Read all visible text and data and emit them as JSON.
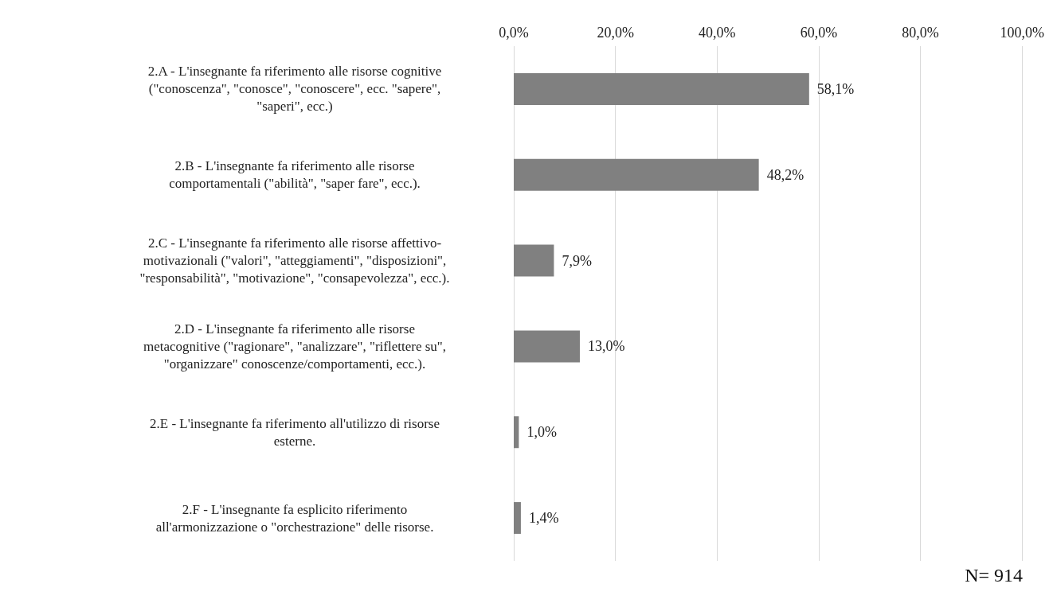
{
  "chart_data": {
    "type": "bar",
    "orientation": "horizontal",
    "categories": [
      "2.A - L'insegnante fa riferimento alle risorse cognitive\n(\"conoscenza\", \"conosce\", \"conoscere\", ecc. \"sapere\",\n\"saperi\", ecc.)",
      "2.B - L'insegnante fa riferimento alle risorse\ncomportamentali (\"abilità\", \"saper fare\", ecc.).",
      "2.C - L'insegnante fa riferimento alle risorse affettivo-\nmotivazionali (\"valori\", \"atteggiamenti\", \"disposizioni\",\n\"responsabilità\", \"motivazione\", \"consapevolezza\", ecc.).",
      "2.D - L'insegnante fa riferimento alle risorse\nmetacognitive (\"ragionare\", \"analizzare\", \"riflettere su\",\n\"organizzare\" conoscenze/comportamenti, ecc.).",
      "2.E - L'insegnante fa riferimento all'utilizzo di risorse\nesterne.",
      "2.F - L'insegnante fa esplicito riferimento\nall'armonizzazione o \"orchestrazione\" delle risorse."
    ],
    "values": [
      58.1,
      48.2,
      7.9,
      13.0,
      1.0,
      1.4
    ],
    "value_labels": [
      "58,1%",
      "48,2%",
      "7,9%",
      "13,0%",
      "1,0%",
      "1,4%"
    ],
    "color": "#808080",
    "xlim": [
      0,
      100
    ],
    "xticks": [
      {
        "value": 0,
        "label": "0,0%"
      },
      {
        "value": 20,
        "label": "20,0%"
      },
      {
        "value": 40,
        "label": "40,0%"
      },
      {
        "value": 60,
        "label": "60,0%"
      },
      {
        "value": 80,
        "label": "80,0%"
      },
      {
        "value": 100,
        "label": "100,0%"
      }
    ],
    "grid": "x",
    "annotations": [
      "N= 914"
    ]
  }
}
